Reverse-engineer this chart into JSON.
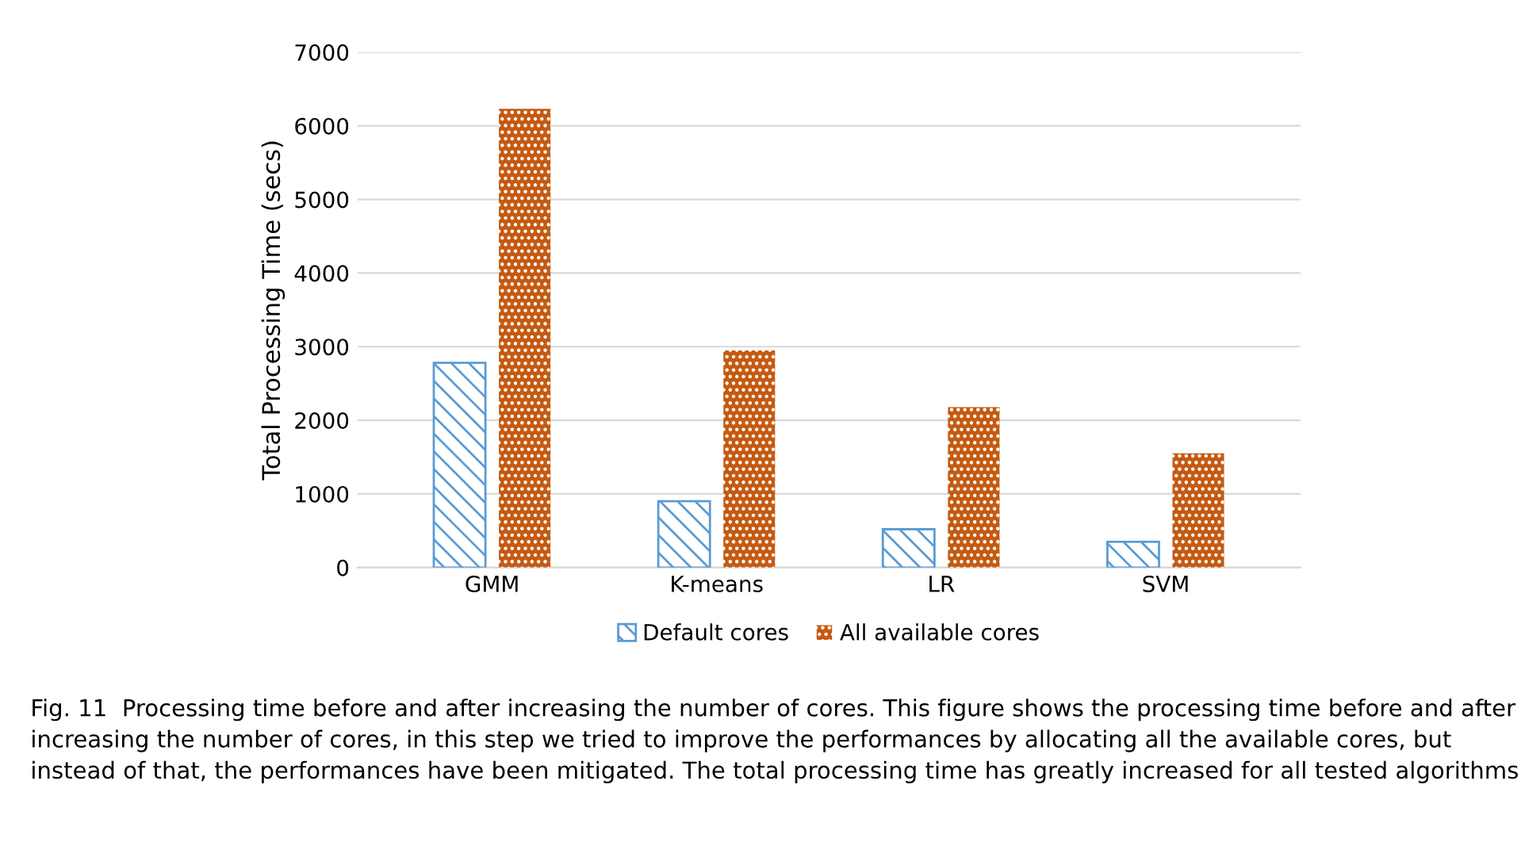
{
  "chart_data": {
    "type": "bar",
    "ylabel": "Total Processing Time (secs)",
    "categories": [
      "GMM",
      "K-means",
      "LR",
      "SVM"
    ],
    "series": [
      {
        "name": "Default cores",
        "color": "#5b9bd5",
        "values": [
          2780,
          900,
          520,
          350
        ]
      },
      {
        "name": "All available cores",
        "color": "#c55a11",
        "values": [
          6230,
          2950,
          2180,
          1550
        ]
      }
    ],
    "ylim": [
      0,
      7000
    ],
    "yticks": [
      0,
      1000,
      2000,
      3000,
      4000,
      5000,
      6000,
      7000
    ],
    "grid": "y",
    "legend": "bottom",
    "annotations": [
      "Fig. 11  Processing time before and after increasing the number of cores. This figure shows the processing time before and after increasing the number of cores, in this step we tried to improve the performances by allocating all the available cores, but instead of that, the performances have been mitigated. The total processing time has greatly increased for all tested algorithms"
    ]
  }
}
